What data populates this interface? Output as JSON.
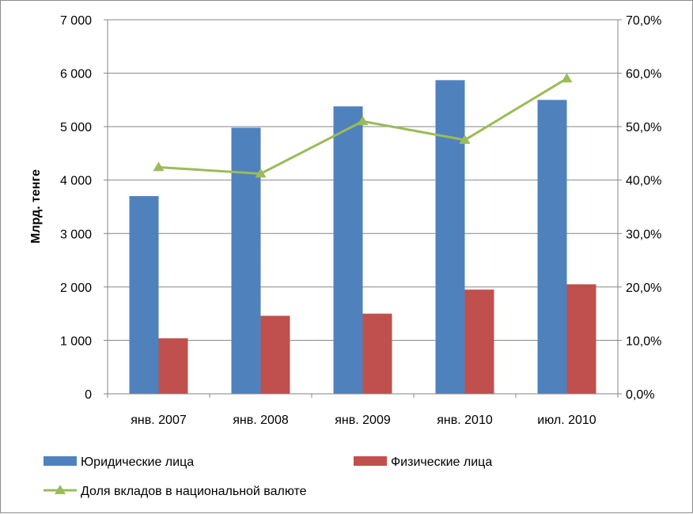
{
  "chart_data": {
    "type": "bar",
    "categories": [
      "янв. 2007",
      "янв. 2008",
      "янв. 2009",
      "янв. 2010",
      "июл. 2010"
    ],
    "ylabel": "Млрд. тенге",
    "ylim": [
      0,
      7000
    ],
    "yticks": [
      "0",
      "1 000",
      "2 000",
      "3 000",
      "4 000",
      "5 000",
      "6 000",
      "7 000"
    ],
    "y2lim": [
      0,
      0.7
    ],
    "y2ticks": [
      "0,0%",
      "10,0%",
      "20,0%",
      "30,0%",
      "40,0%",
      "50,0%",
      "60,0%",
      "70,0%"
    ],
    "series": [
      {
        "name": "Юридические лица",
        "kind": "bar",
        "axis": "left",
        "color": "#4f81bd",
        "values": [
          3700,
          4980,
          5380,
          5870,
          5500
        ]
      },
      {
        "name": "Физические лица",
        "kind": "bar",
        "axis": "left",
        "color": "#c0504d",
        "values": [
          1040,
          1460,
          1500,
          1950,
          2050
        ]
      },
      {
        "name": "Доля вкладов в национальной валюте",
        "kind": "line",
        "axis": "right",
        "color": "#9bbb59",
        "marker": "triangle",
        "values": [
          0.424,
          0.412,
          0.51,
          0.475,
          0.59
        ]
      }
    ],
    "grid": "horizontal-major",
    "legend_position": "bottom"
  }
}
